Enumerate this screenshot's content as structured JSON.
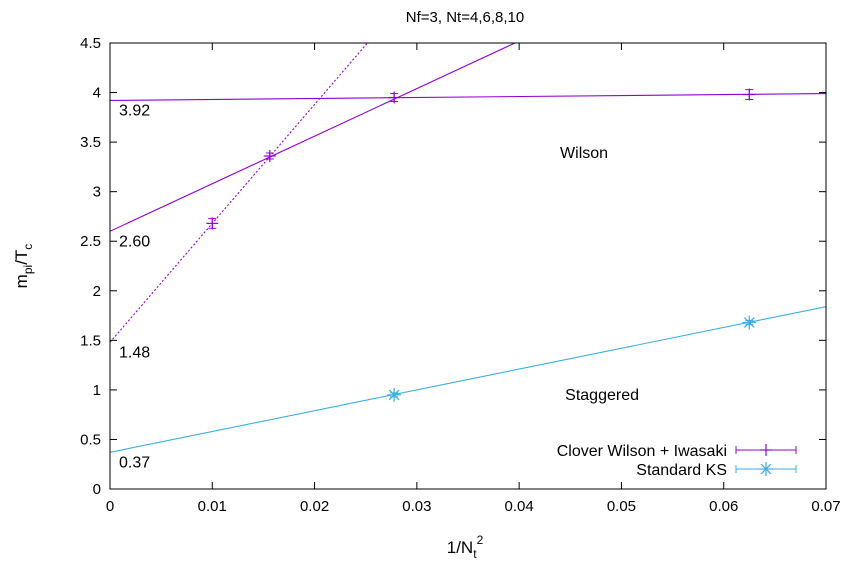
{
  "chart_data": {
    "type": "scatter",
    "title": "Nf=3, Nt=4,6,8,10",
    "xlabel": {
      "base": "1/N",
      "sub": "t",
      "sup": "2"
    },
    "ylabel": {
      "base": "m",
      "sub": "pi",
      "mid": "/T",
      "sub2": "c"
    },
    "xlim": [
      0,
      0.07
    ],
    "ylim": [
      0,
      4.5
    ],
    "x_ticks": [
      "0",
      "0.01",
      "0.02",
      "0.03",
      "0.04",
      "0.05",
      "0.06",
      "0.07"
    ],
    "y_ticks": [
      "0",
      "0.5",
      "1",
      "1.5",
      "2",
      "2.5",
      "3",
      "3.5",
      "4",
      "4.5"
    ],
    "grid": false,
    "legend_position": "bottom-right",
    "series": [
      {
        "name": "Clover Wilson + Iwasaki",
        "color": "#9400d3",
        "marker": "plus",
        "points": [
          {
            "x": 0.01,
            "y": 2.68,
            "err": 0.05
          },
          {
            "x": 0.015625,
            "y": 3.36,
            "err": 0.03
          },
          {
            "x": 0.027778,
            "y": 3.95,
            "err": 0.04
          },
          {
            "x": 0.0625,
            "y": 3.98,
            "err": 0.05
          }
        ]
      },
      {
        "name": "Standard KS",
        "color": "#3daee0",
        "marker": "star",
        "points": [
          {
            "x": 0.027778,
            "y": 0.95,
            "err": 0.02
          },
          {
            "x": 0.0625,
            "y": 1.68,
            "err": 0.02
          }
        ]
      }
    ],
    "fit_lines": [
      {
        "series": "Clover Wilson + Iwasaki",
        "style": "solid",
        "intercept": 3.92,
        "slope": 1.0
      },
      {
        "series": "Clover Wilson + Iwasaki",
        "style": "solid",
        "intercept": 2.6,
        "slope": 48.0
      },
      {
        "series": "Clover Wilson + Iwasaki",
        "style": "dotted",
        "intercept": 1.48,
        "slope": 120.0
      },
      {
        "series": "Standard KS",
        "style": "solid",
        "intercept": 0.37,
        "slope": 21.0
      }
    ],
    "annotations": [
      {
        "text": "3.92",
        "x": 0.0,
        "y": 3.92
      },
      {
        "text": "2.60",
        "x": 0.0,
        "y": 2.6
      },
      {
        "text": "1.48",
        "x": 0.0,
        "y": 1.48
      },
      {
        "text": "0.37",
        "x": 0.0,
        "y": 0.37
      },
      {
        "text": "Wilson",
        "x": 0.044,
        "y": 3.39
      },
      {
        "text": "Staggered",
        "x": 0.0445,
        "y": 0.95
      }
    ]
  }
}
